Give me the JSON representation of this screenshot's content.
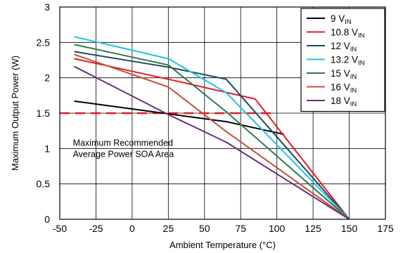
{
  "chart_data": {
    "type": "line",
    "xlabel": "Ambient Temperature (°C)",
    "ylabel": "Maximum Output Power (W)",
    "xlim": [
      -50,
      175
    ],
    "ylim": [
      0,
      3
    ],
    "xticks": [
      -50,
      -25,
      0,
      25,
      50,
      75,
      100,
      125,
      150,
      175
    ],
    "yticks": [
      0,
      0.5,
      1,
      1.5,
      2,
      2.5,
      3
    ],
    "grid": true,
    "legend_position": "top-right",
    "series": [
      {
        "name_main": "9 V",
        "name_sub": "IN",
        "color": "#000000",
        "x": [
          -40,
          25,
          65,
          105
        ],
        "y": [
          1.67,
          1.49,
          1.38,
          1.2
        ]
      },
      {
        "name_main": "10.8 V",
        "name_sub": "IN",
        "color": "#e8191f",
        "x": [
          -40,
          25,
          85,
          150
        ],
        "y": [
          2.27,
          1.98,
          1.7,
          0
        ]
      },
      {
        "name_main": "12 V",
        "name_sub": "IN",
        "color": "#1a4a5e",
        "x": [
          -40,
          25,
          65,
          150
        ],
        "y": [
          2.37,
          2.15,
          1.98,
          0
        ]
      },
      {
        "name_main": "13.2 V",
        "name_sub": "IN",
        "color": "#1ec4e0",
        "x": [
          -40,
          25,
          65,
          150
        ],
        "y": [
          2.58,
          2.27,
          1.79,
          0
        ]
      },
      {
        "name_main": "15 V",
        "name_sub": "IN",
        "color": "#2d7a4d",
        "x": [
          -40,
          25,
          65,
          150
        ],
        "y": [
          2.47,
          2.18,
          1.52,
          0
        ]
      },
      {
        "name_main": "16 V",
        "name_sub": "IN",
        "color": "#c0533c",
        "x": [
          -40,
          25,
          65,
          150
        ],
        "y": [
          2.33,
          1.87,
          1.24,
          0
        ]
      },
      {
        "name_main": "18 V",
        "name_sub": "IN",
        "color": "#6b2f7a",
        "x": [
          -40,
          25,
          65,
          150
        ],
        "y": [
          2.16,
          1.48,
          1.09,
          0
        ]
      }
    ],
    "reference_line": {
      "y": 1.5,
      "x_from": -50,
      "x_to": 100,
      "color": "#e8191f",
      "style": "dashed"
    },
    "annotation": {
      "lines": [
        "Maximum Recommended",
        "Average Power SOA Area"
      ],
      "x": -40,
      "y": 1.08
    }
  }
}
